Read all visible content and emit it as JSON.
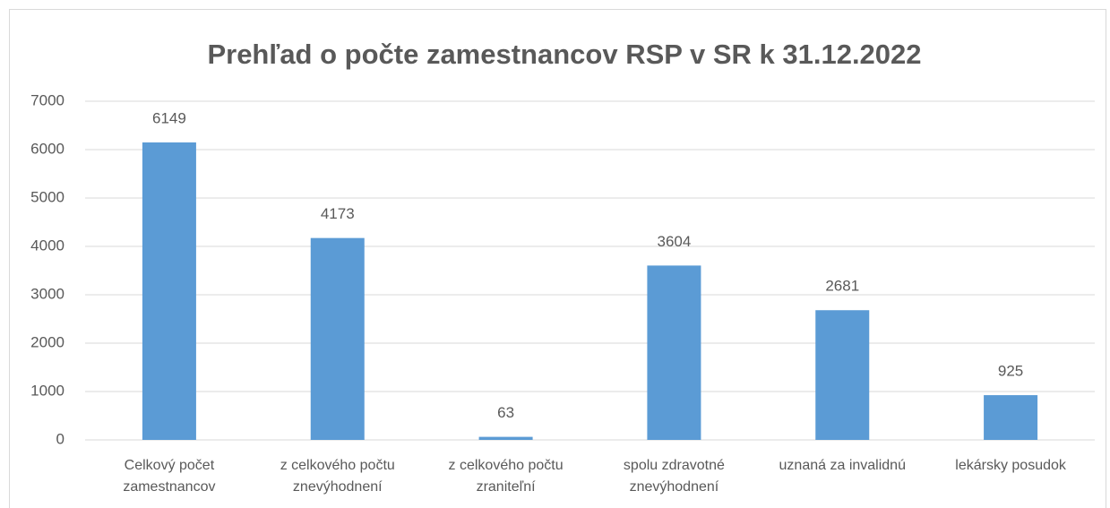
{
  "chart_data": {
    "type": "bar",
    "title": "Prehľad o počte zamestnancov  RSP v SR k 31.12.2022",
    "categories": [
      "Celkový počet zamestnancov",
      "z celkového počtu znevýhodnení",
      "z celkového počtu zraniteľní",
      "spolu zdravotné znevýhodnení",
      "uznaná za invalidnú",
      "lekársky posudok"
    ],
    "values": [
      6149,
      4173,
      63,
      3604,
      2681,
      925
    ],
    "color": "#5b9bd5",
    "ylim": [
      0,
      7000
    ],
    "yticks": [
      0,
      1000,
      2000,
      3000,
      4000,
      5000,
      6000,
      7000
    ],
    "grid": true
  }
}
